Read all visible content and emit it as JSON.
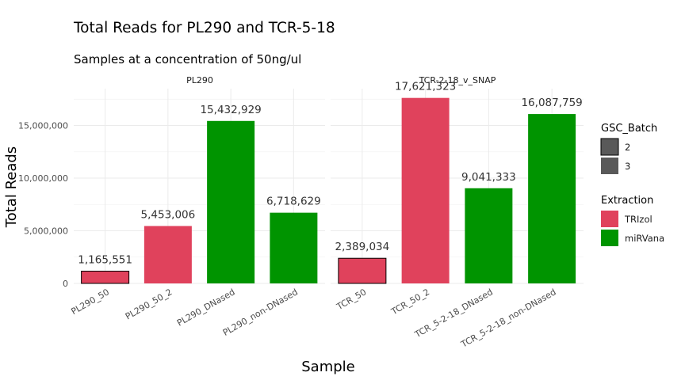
{
  "chart_data": {
    "type": "bar",
    "title": "Total Reads for PL290 and TCR-5-18",
    "subtitle": "Samples at a concentration of 50ng/ul",
    "xlabel": "Sample",
    "ylabel": "Total Reads",
    "ylim": [
      0,
      18500000
    ],
    "yticks": [
      0,
      5000000,
      10000000,
      15000000
    ],
    "ytick_labels": [
      "0",
      "5,000,000",
      "10,000,000",
      "15,000,000"
    ],
    "grid": true,
    "colors": {
      "TRIzol": "#e0425c",
      "miRVana": "#009400"
    },
    "panels": [
      {
        "name": "PL290",
        "categories": [
          "PL290_50",
          "PL290_50_2",
          "PL290_DNased",
          "PL290_non-DNased"
        ],
        "values": [
          1165551,
          5453006,
          15432929,
          6718629
        ],
        "labels": [
          "1,165,551",
          "5,453,006",
          "15,432,929",
          "6,718,629"
        ],
        "extraction": [
          "TRIzol",
          "TRIzol",
          "miRVana",
          "miRVana"
        ],
        "batch": [
          "2",
          "3",
          "3",
          "3"
        ]
      },
      {
        "name": "TCR-2-18_v_SNAP",
        "categories": [
          "TCR_50",
          "TCR_50_2",
          "TCR_5-2-18_DNased",
          "TCR_5-2-18_non-DNased"
        ],
        "values": [
          2389034,
          17621323,
          9041333,
          16087759
        ],
        "labels": [
          "2,389,034",
          "17,621,323",
          "9,041,333",
          "16,087,759"
        ],
        "extraction": [
          "TRIzol",
          "TRIzol",
          "miRVana",
          "miRVana"
        ],
        "batch": [
          "2",
          "3",
          "3",
          "3"
        ]
      }
    ],
    "legend": {
      "position": "right",
      "groups": [
        {
          "title": "GSC_Batch",
          "items": [
            {
              "label": "2",
              "swatch": "#595959",
              "outlined": true
            },
            {
              "label": "3",
              "swatch": "#595959",
              "outlined": false
            }
          ]
        },
        {
          "title": "Extraction",
          "items": [
            {
              "label": "TRIzol",
              "swatch": "#e0425c"
            },
            {
              "label": "miRVana",
              "swatch": "#009400"
            }
          ]
        }
      ]
    }
  }
}
